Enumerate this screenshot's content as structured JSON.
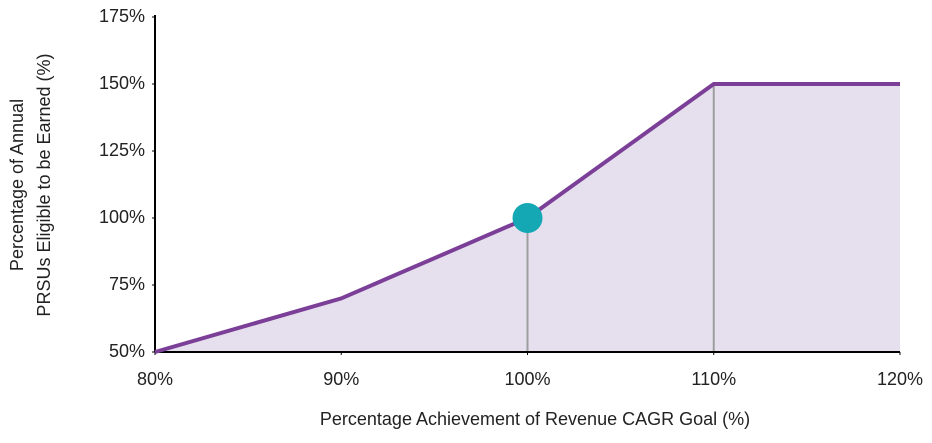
{
  "chart_data": {
    "type": "line",
    "x": [
      80,
      90,
      100,
      110,
      120
    ],
    "series": [
      {
        "color": "#7b3f98",
        "fill": "#e6e0ee",
        "values": [
          50,
          70,
          100,
          150,
          150
        ]
      }
    ],
    "xlim": [
      80,
      120
    ],
    "xticks": [
      {
        "value": 80,
        "label": "80%"
      },
      {
        "value": 90,
        "label": "90%"
      },
      {
        "value": 100,
        "label": "100%"
      },
      {
        "value": 110,
        "label": "110%"
      },
      {
        "value": 120,
        "label": "120%"
      }
    ],
    "ylim": [
      50,
      175
    ],
    "yticks": [
      {
        "value": 50,
        "label": "50%"
      },
      {
        "value": 75,
        "label": "75%"
      },
      {
        "value": 100,
        "label": "100%"
      },
      {
        "value": 125,
        "label": "125%"
      },
      {
        "value": 150,
        "label": "150%"
      },
      {
        "value": 175,
        "label": "175%"
      }
    ],
    "x_label": "Percentage Achievement of Revenue CAGR Goal (%)",
    "y_label": [
      "Percentage of Annual",
      "PRSUs Eligible to be Earned (%)"
    ],
    "highlight": {
      "x": 100,
      "y": 100,
      "color": "#13a8b4"
    },
    "drop_lines": [
      100,
      110
    ]
  }
}
